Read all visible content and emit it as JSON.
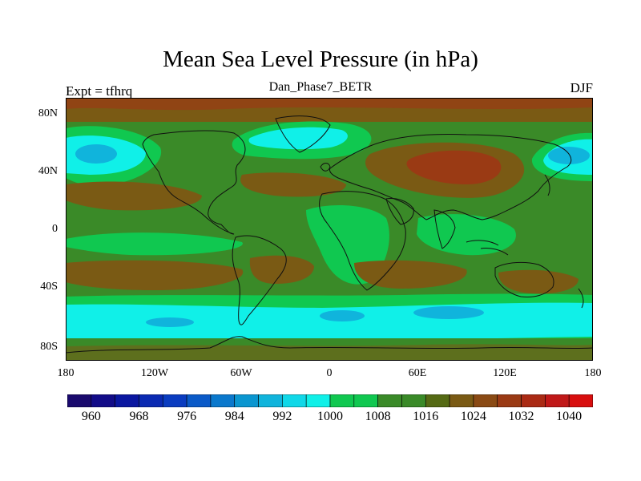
{
  "map": {
    "title": "Mean Sea Level Pressure (in hPa)",
    "subtitle": "Dan_Phase7_BETR",
    "left_string": "Expt = tfhrq",
    "right_string": "DJF",
    "projection": "cylindrical-equidistant",
    "lat_range": [
      -90,
      90
    ],
    "lon_range": [
      -180,
      180
    ],
    "lat_ticks": [
      "80N",
      "40N",
      "0",
      "40S",
      "80S"
    ],
    "lon_ticks": [
      "180",
      "120W",
      "60W",
      "0",
      "60E",
      "120E",
      "180"
    ]
  },
  "colorbar": {
    "units": "hPa",
    "levels": [
      960,
      964,
      968,
      972,
      976,
      980,
      984,
      988,
      992,
      996,
      1000,
      1004,
      1008,
      1012,
      1016,
      1020,
      1024,
      1028,
      1032,
      1036,
      1040
    ],
    "labels": [
      "960",
      "968",
      "976",
      "984",
      "992",
      "1000",
      "1008",
      "1016",
      "1024",
      "1032",
      "1040"
    ],
    "colors": [
      "#1a0a6e",
      "#120c88",
      "#0a17a0",
      "#0a2ab2",
      "#0a3cc0",
      "#0a5ac8",
      "#0a78cc",
      "#0a96d0",
      "#10b4dc",
      "#10d8e8",
      "#10f0e8",
      "#10c850",
      "#10c850",
      "#3a8a28",
      "#3a8a28",
      "#556a14",
      "#7a5a14",
      "#8a4a14",
      "#9a3a14",
      "#aa2a14",
      "#c01818",
      "#d80e0e"
    ]
  },
  "fields": {
    "ocean": "#3a8a28",
    "high": "#7a5a14",
    "strong_high": "#9a3a14",
    "low": "#10c850",
    "deep_low": "#10f0e8",
    "core_low": "#10b4dc",
    "coast": "#101010"
  }
}
